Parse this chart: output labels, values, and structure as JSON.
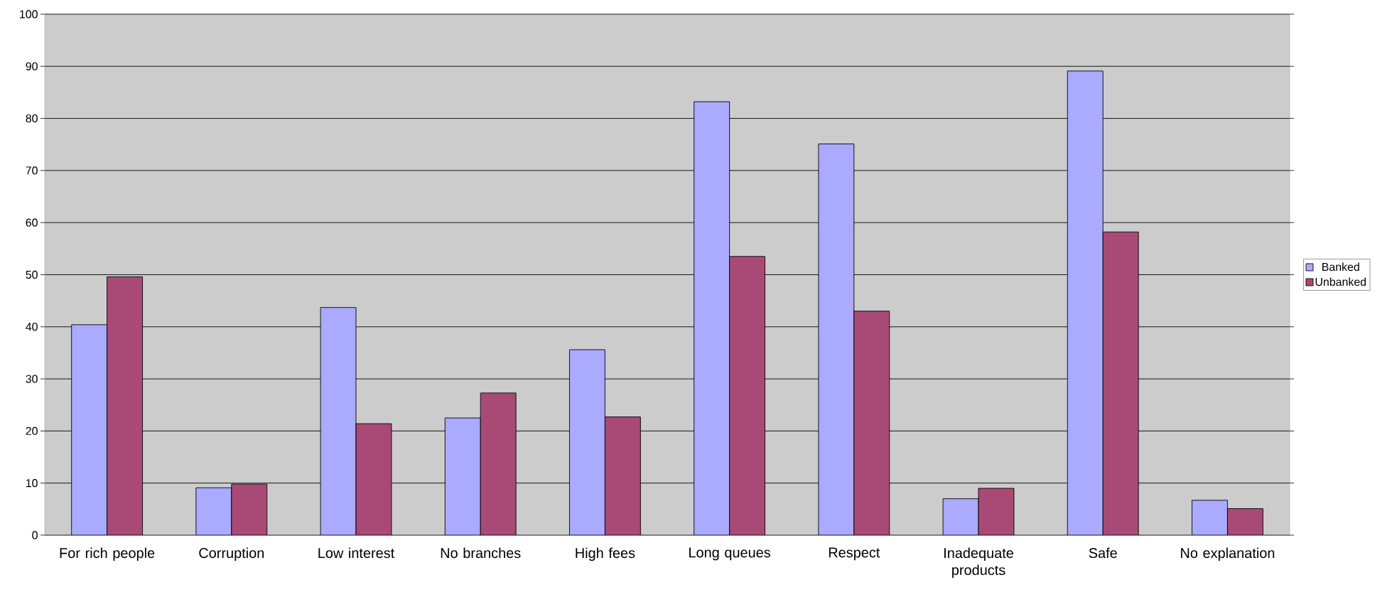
{
  "chart_data": {
    "type": "bar",
    "categories": [
      "For rich people",
      "Corruption",
      "Low interest",
      "No branches",
      "High fees",
      "Long queues",
      "Respect",
      "Inadequate products",
      "Safe",
      "No explanation"
    ],
    "series": [
      {
        "name": "Banked",
        "color": "#aaaaff",
        "values": [
          40.4,
          9.1,
          43.7,
          22.5,
          35.6,
          83.2,
          75.1,
          7.0,
          89.1,
          6.7
        ]
      },
      {
        "name": "Unbanked",
        "color": "#a94a76",
        "values": [
          49.6,
          9.8,
          21.4,
          27.3,
          22.7,
          53.5,
          43.0,
          9.0,
          58.2,
          5.1
        ]
      }
    ],
    "ylim": [
      0,
      100
    ],
    "yticks": [
      0,
      10,
      20,
      30,
      40,
      50,
      60,
      70,
      80,
      90,
      100
    ],
    "grid": "y",
    "legend": "right"
  }
}
